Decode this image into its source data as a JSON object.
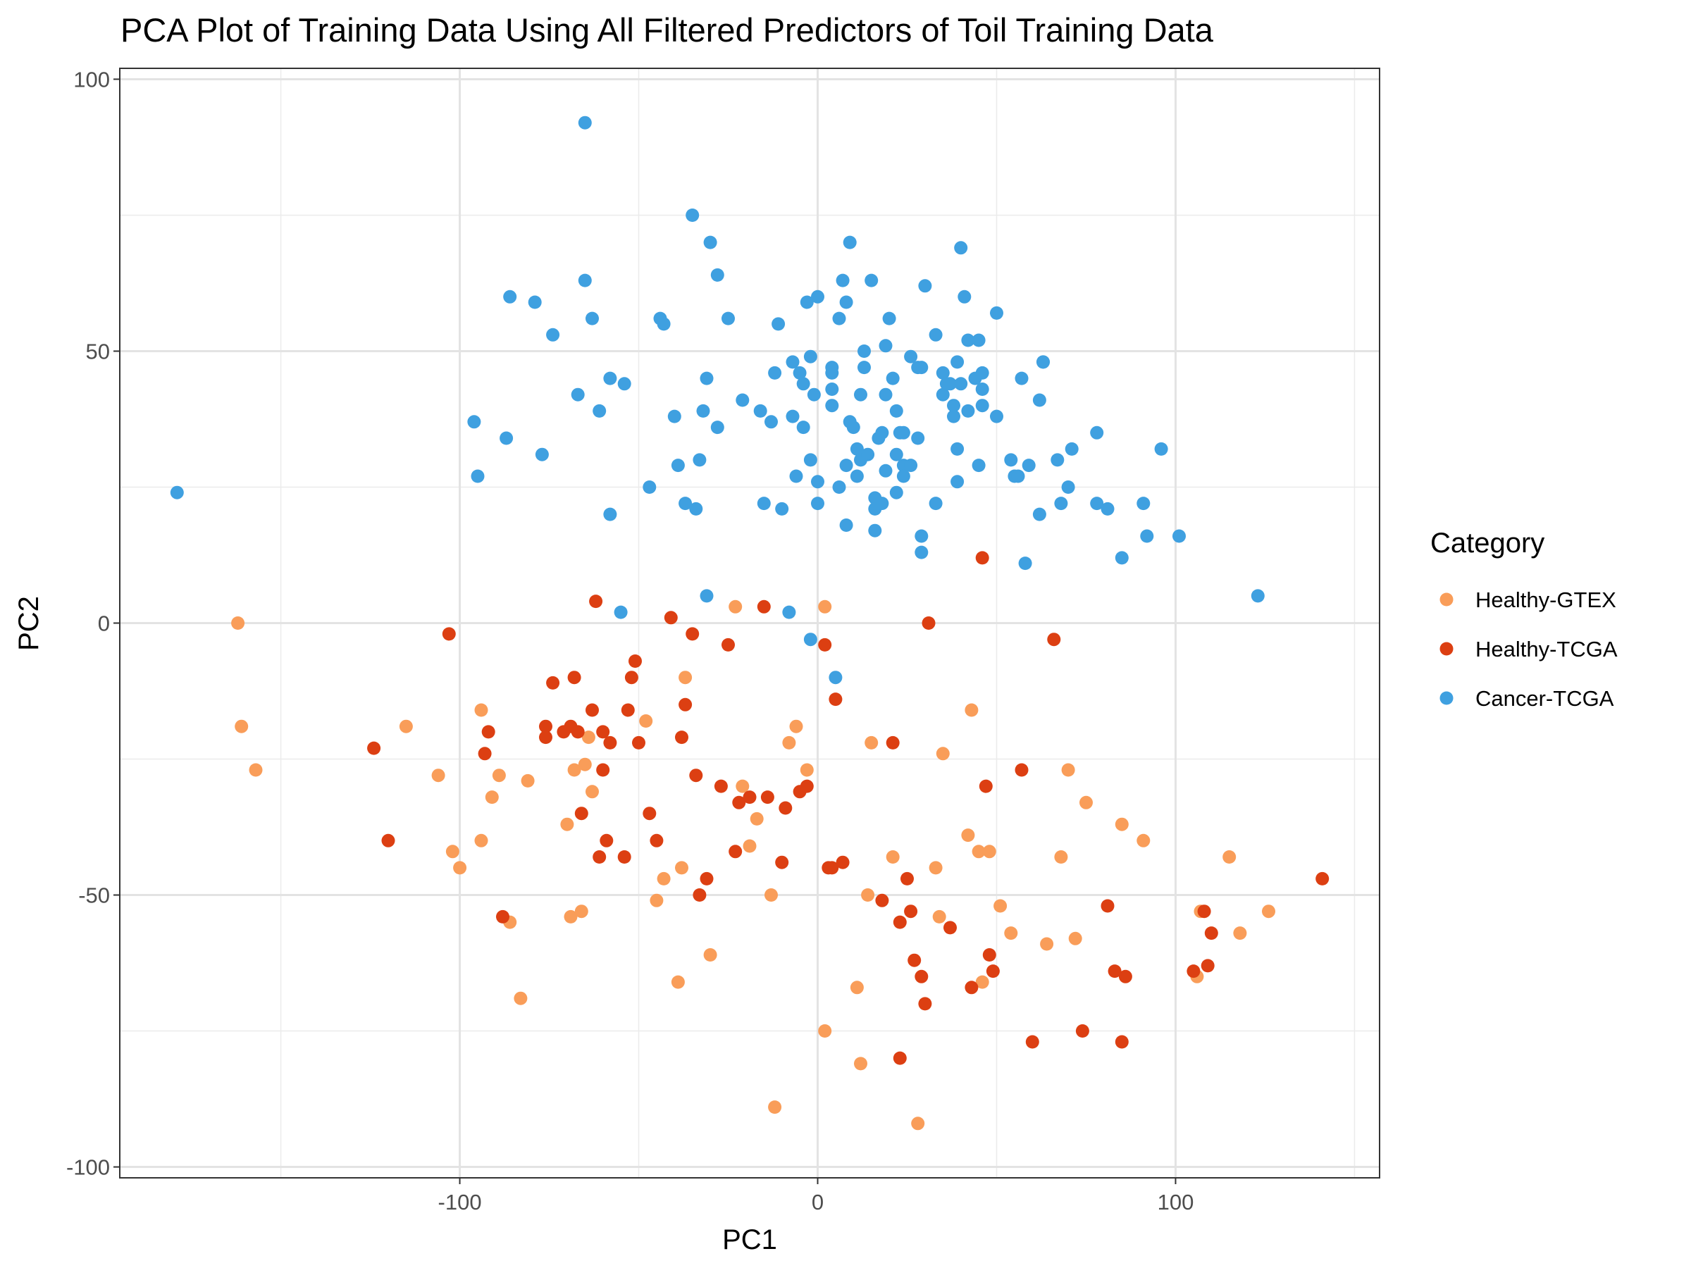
{
  "chart_data": {
    "type": "scatter",
    "title": "PCA Plot of Training Data Using All Filtered Predictors of Toil Training Data",
    "xlabel": "PC1",
    "ylabel": "PC2",
    "xlim": [
      -195,
      157
    ],
    "ylim": [
      -102,
      102
    ],
    "xticks": [
      -100,
      0,
      100
    ],
    "xtick_labels": [
      "-100",
      "0",
      "100"
    ],
    "yticks": [
      -100,
      -50,
      0,
      50,
      100
    ],
    "ytick_labels": [
      "-100",
      "-50",
      "0",
      "50",
      "100"
    ],
    "grid": true,
    "legend": {
      "title": "Category",
      "placement": "right"
    },
    "series": [
      {
        "name": "Healthy-GTEX",
        "color": "#F99D59",
        "points": [
          [
            -162,
            0
          ],
          [
            -161,
            -19
          ],
          [
            -157,
            -27
          ],
          [
            -115,
            -19
          ],
          [
            -106,
            -28
          ],
          [
            -102,
            -42
          ],
          [
            -100,
            -45
          ],
          [
            -94,
            -16
          ],
          [
            -94,
            -40
          ],
          [
            -91,
            -32
          ],
          [
            -89,
            -28
          ],
          [
            -86,
            -55
          ],
          [
            -83,
            -69
          ],
          [
            -81,
            -29
          ],
          [
            -70,
            -37
          ],
          [
            -69,
            -54
          ],
          [
            -68,
            -27
          ],
          [
            -66,
            -53
          ],
          [
            -65,
            -26
          ],
          [
            -64,
            -21
          ],
          [
            -63,
            -31
          ],
          [
            -48,
            -18
          ],
          [
            -45,
            -51
          ],
          [
            -43,
            -47
          ],
          [
            -39,
            -66
          ],
          [
            -38,
            -45
          ],
          [
            -37,
            -10
          ],
          [
            -30,
            -61
          ],
          [
            -21,
            -30
          ],
          [
            -19,
            -41
          ],
          [
            -17,
            -36
          ],
          [
            -13,
            -50
          ],
          [
            -12,
            -89
          ],
          [
            -8,
            -22
          ],
          [
            -6,
            -19
          ],
          [
            -3,
            -27
          ],
          [
            2,
            -75
          ],
          [
            11,
            -67
          ],
          [
            12,
            -81
          ],
          [
            14,
            -50
          ],
          [
            15,
            -22
          ],
          [
            21,
            -43
          ],
          [
            28,
            -92
          ],
          [
            33,
            -45
          ],
          [
            34,
            -54
          ],
          [
            35,
            -24
          ],
          [
            42,
            -39
          ],
          [
            43,
            -16
          ],
          [
            45,
            -42
          ],
          [
            46,
            -66
          ],
          [
            48,
            -42
          ],
          [
            51,
            -52
          ],
          [
            54,
            -57
          ],
          [
            64,
            -59
          ],
          [
            68,
            -43
          ],
          [
            70,
            -27
          ],
          [
            72,
            -58
          ],
          [
            75,
            -33
          ],
          [
            85,
            -37
          ],
          [
            91,
            -40
          ],
          [
            106,
            -65
          ],
          [
            107,
            -53
          ],
          [
            115,
            -43
          ],
          [
            118,
            -57
          ],
          [
            126,
            -53
          ],
          [
            -23,
            3
          ],
          [
            2,
            3
          ]
        ]
      },
      {
        "name": "Healthy-TCGA",
        "color": "#DC3F12",
        "points": [
          [
            -124,
            -23
          ],
          [
            -120,
            -40
          ],
          [
            -103,
            -2
          ],
          [
            -93,
            -24
          ],
          [
            -92,
            -20
          ],
          [
            -88,
            -54
          ],
          [
            -76,
            -21
          ],
          [
            -76,
            -19
          ],
          [
            -74,
            -11
          ],
          [
            -71,
            -20
          ],
          [
            -69,
            -19
          ],
          [
            -68,
            -10
          ],
          [
            -67,
            -20
          ],
          [
            -66,
            -35
          ],
          [
            -63,
            -16
          ],
          [
            -62,
            4
          ],
          [
            -61,
            -43
          ],
          [
            -60,
            -20
          ],
          [
            -60,
            -27
          ],
          [
            -59,
            -40
          ],
          [
            -58,
            -22
          ],
          [
            -54,
            -43
          ],
          [
            -53,
            -16
          ],
          [
            -52,
            -10
          ],
          [
            -51,
            -7
          ],
          [
            -50,
            -22
          ],
          [
            -47,
            -35
          ],
          [
            -45,
            -40
          ],
          [
            -41,
            1
          ],
          [
            -38,
            -21
          ],
          [
            -37,
            -15
          ],
          [
            -35,
            -2
          ],
          [
            -34,
            -28
          ],
          [
            -33,
            -50
          ],
          [
            -31,
            -47
          ],
          [
            -27,
            -30
          ],
          [
            -25,
            -4
          ],
          [
            -23,
            -42
          ],
          [
            -22,
            -33
          ],
          [
            -19,
            -32
          ],
          [
            -15,
            3
          ],
          [
            -14,
            -32
          ],
          [
            -10,
            -44
          ],
          [
            -9,
            -34
          ],
          [
            -5,
            -31
          ],
          [
            -3,
            -30
          ],
          [
            2,
            -4
          ],
          [
            3,
            -45
          ],
          [
            4,
            -45
          ],
          [
            5,
            -14
          ],
          [
            7,
            -44
          ],
          [
            18,
            -51
          ],
          [
            21,
            -22
          ],
          [
            23,
            -55
          ],
          [
            23,
            -80
          ],
          [
            25,
            -47
          ],
          [
            26,
            -53
          ],
          [
            27,
            -62
          ],
          [
            29,
            -65
          ],
          [
            30,
            -70
          ],
          [
            31,
            0
          ],
          [
            37,
            -56
          ],
          [
            43,
            -67
          ],
          [
            46,
            12
          ],
          [
            47,
            -30
          ],
          [
            48,
            -61
          ],
          [
            49,
            -64
          ],
          [
            57,
            -27
          ],
          [
            60,
            -77
          ],
          [
            66,
            -3
          ],
          [
            74,
            -75
          ],
          [
            81,
            -52
          ],
          [
            83,
            -64
          ],
          [
            85,
            -77
          ],
          [
            86,
            -65
          ],
          [
            105,
            -64
          ],
          [
            108,
            -53
          ],
          [
            109,
            -63
          ],
          [
            110,
            -57
          ],
          [
            141,
            -47
          ]
        ]
      },
      {
        "name": "Cancer-TCGA",
        "color": "#3FA0E0",
        "points": [
          [
            -179,
            24
          ],
          [
            -96,
            37
          ],
          [
            -95,
            27
          ],
          [
            -87,
            34
          ],
          [
            -86,
            60
          ],
          [
            -79,
            59
          ],
          [
            -77,
            31
          ],
          [
            -74,
            53
          ],
          [
            -67,
            42
          ],
          [
            -65,
            63
          ],
          [
            -65,
            92
          ],
          [
            -63,
            56
          ],
          [
            -61,
            39
          ],
          [
            -58,
            20
          ],
          [
            -58,
            45
          ],
          [
            -55,
            2
          ],
          [
            -54,
            44
          ],
          [
            -47,
            25
          ],
          [
            -44,
            56
          ],
          [
            -43,
            55
          ],
          [
            -40,
            38
          ],
          [
            -39,
            29
          ],
          [
            -37,
            22
          ],
          [
            -35,
            75
          ],
          [
            -34,
            21
          ],
          [
            -33,
            30
          ],
          [
            -32,
            39
          ],
          [
            -31,
            5
          ],
          [
            -31,
            45
          ],
          [
            -30,
            70
          ],
          [
            -28,
            36
          ],
          [
            -28,
            64
          ],
          [
            -25,
            56
          ],
          [
            -21,
            41
          ],
          [
            -16,
            39
          ],
          [
            -15,
            22
          ],
          [
            -13,
            37
          ],
          [
            -12,
            46
          ],
          [
            -11,
            55
          ],
          [
            -10,
            21
          ],
          [
            -8,
            2
          ],
          [
            -7,
            38
          ],
          [
            -7,
            48
          ],
          [
            -6,
            27
          ],
          [
            -5,
            46
          ],
          [
            -4,
            36
          ],
          [
            -4,
            44
          ],
          [
            -3,
            59
          ],
          [
            -2,
            -3
          ],
          [
            -2,
            49
          ],
          [
            -2,
            30
          ],
          [
            -1,
            42
          ],
          [
            0,
            26
          ],
          [
            0,
            60
          ],
          [
            0,
            22
          ],
          [
            4,
            47
          ],
          [
            4,
            46
          ],
          [
            4,
            43
          ],
          [
            4,
            40
          ],
          [
            5,
            -10
          ],
          [
            6,
            25
          ],
          [
            6,
            56
          ],
          [
            7,
            63
          ],
          [
            8,
            59
          ],
          [
            8,
            18
          ],
          [
            8,
            29
          ],
          [
            9,
            37
          ],
          [
            9,
            70
          ],
          [
            10,
            36
          ],
          [
            11,
            32
          ],
          [
            11,
            27
          ],
          [
            12,
            30
          ],
          [
            12,
            42
          ],
          [
            13,
            50
          ],
          [
            13,
            47
          ],
          [
            14,
            31
          ],
          [
            15,
            63
          ],
          [
            16,
            23
          ],
          [
            16,
            21
          ],
          [
            16,
            17
          ],
          [
            17,
            34
          ],
          [
            18,
            22
          ],
          [
            18,
            35
          ],
          [
            19,
            28
          ],
          [
            19,
            51
          ],
          [
            19,
            42
          ],
          [
            20,
            56
          ],
          [
            21,
            45
          ],
          [
            22,
            31
          ],
          [
            22,
            39
          ],
          [
            22,
            24
          ],
          [
            23,
            35
          ],
          [
            24,
            35
          ],
          [
            24,
            29
          ],
          [
            24,
            27
          ],
          [
            26,
            49
          ],
          [
            26,
            29
          ],
          [
            28,
            34
          ],
          [
            28,
            47
          ],
          [
            29,
            47
          ],
          [
            29,
            16
          ],
          [
            29,
            13
          ],
          [
            30,
            62
          ],
          [
            33,
            53
          ],
          [
            33,
            22
          ],
          [
            35,
            46
          ],
          [
            35,
            42
          ],
          [
            36,
            44
          ],
          [
            37,
            44
          ],
          [
            38,
            38
          ],
          [
            38,
            40
          ],
          [
            39,
            48
          ],
          [
            39,
            26
          ],
          [
            39,
            32
          ],
          [
            40,
            44
          ],
          [
            40,
            69
          ],
          [
            41,
            60
          ],
          [
            42,
            39
          ],
          [
            42,
            52
          ],
          [
            44,
            45
          ],
          [
            45,
            29
          ],
          [
            45,
            52
          ],
          [
            46,
            43
          ],
          [
            46,
            46
          ],
          [
            46,
            40
          ],
          [
            50,
            57
          ],
          [
            50,
            38
          ],
          [
            54,
            30
          ],
          [
            55,
            27
          ],
          [
            56,
            27
          ],
          [
            57,
            45
          ],
          [
            58,
            11
          ],
          [
            59,
            29
          ],
          [
            62,
            20
          ],
          [
            62,
            41
          ],
          [
            63,
            48
          ],
          [
            63,
            48
          ],
          [
            67,
            30
          ],
          [
            68,
            22
          ],
          [
            70,
            25
          ],
          [
            71,
            32
          ],
          [
            78,
            35
          ],
          [
            78,
            22
          ],
          [
            81,
            21
          ],
          [
            85,
            12
          ],
          [
            91,
            22
          ],
          [
            92,
            16
          ],
          [
            96,
            32
          ],
          [
            101,
            16
          ],
          [
            123,
            5
          ]
        ]
      }
    ]
  }
}
